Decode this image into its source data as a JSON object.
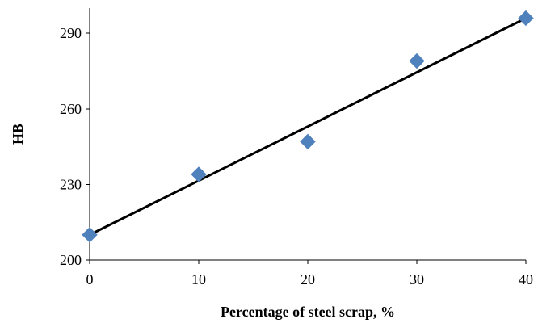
{
  "chart_data": {
    "type": "scatter",
    "title": "",
    "xlabel": "Percentage of steel scrap, %",
    "ylabel": "HB",
    "xlim": [
      0,
      40
    ],
    "ylim": [
      200,
      300
    ],
    "xticks": [
      0,
      10,
      20,
      30,
      40
    ],
    "yticks": [
      200,
      230,
      260,
      290
    ],
    "grid": false,
    "legend": "none",
    "series": [
      {
        "x": [
          0,
          10,
          20,
          30,
          40
        ],
        "y": [
          210,
          234,
          247,
          279,
          296
        ],
        "marker": "diamond",
        "color": "#4F81BD"
      }
    ],
    "trendline": {
      "type": "linear",
      "from": [
        0,
        210
      ],
      "to": [
        40,
        296
      ],
      "color": "#000000"
    }
  }
}
